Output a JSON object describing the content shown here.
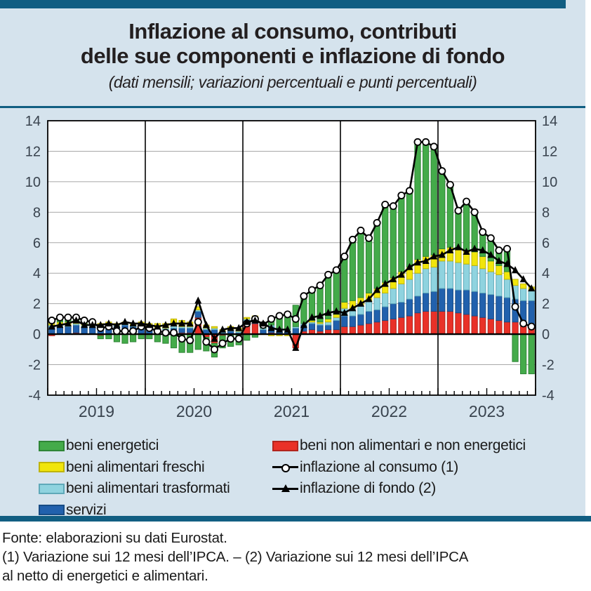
{
  "figure": {
    "title_line1": "Inflazione al consumo, contributi",
    "title_line2": "delle sue componenti e inflazione di fondo",
    "subtitle": "(dati mensili; variazioni percentuali e punti percentuali)"
  },
  "colors": {
    "accent_teal": "#115E82",
    "panel_blue": "#D5E3ED",
    "axis_text": "#39434E",
    "grid_gray": "#A8A8A8",
    "energy_green": "#44AB4A",
    "goods_red": "#E93128",
    "fresh_yellow": "#F1E50C",
    "processed_lightblue": "#8FD3DF",
    "services_blue": "#2161AD"
  },
  "chart_data": {
    "type": "bar",
    "stacked": true,
    "grid": true,
    "legend_position": "bottom",
    "title": "Inflazione al consumo, contributi delle sue componenti e inflazione di fondo",
    "subtitle": "dati mensili; variazioni percentuali e punti percentuali",
    "x_years": [
      "2019",
      "2020",
      "2021",
      "2022",
      "2023"
    ],
    "months_per_year": 12,
    "ylim": [
      -4,
      14
    ],
    "y_ticks": [
      14,
      12,
      10,
      8,
      6,
      4,
      2,
      0,
      -2,
      -4
    ],
    "bar_series": [
      {
        "name": "beni non alimentari e non energetici",
        "color": "#E93128",
        "stroke": "#B2251E",
        "values": [
          -0.1,
          0.0,
          0.0,
          0.1,
          0.0,
          0.0,
          -0.1,
          0.0,
          0.0,
          0.0,
          0.0,
          0.0,
          0.0,
          0.0,
          0.0,
          0.1,
          0.1,
          0.1,
          1.1,
          -0.2,
          -0.6,
          -0.1,
          0.0,
          0.0,
          0.6,
          0.7,
          0.0,
          0.1,
          0.0,
          0.0,
          -0.9,
          0.2,
          0.3,
          0.2,
          0.3,
          0.3,
          0.5,
          0.5,
          0.6,
          0.7,
          0.8,
          0.9,
          1.0,
          1.1,
          1.2,
          1.4,
          1.5,
          1.5,
          1.5,
          1.5,
          1.4,
          1.3,
          1.2,
          1.1,
          1.0,
          0.9,
          0.8,
          0.8,
          0.7,
          0.6
        ]
      },
      {
        "name": "servizi",
        "color": "#2161AD",
        "stroke": "#174C85",
        "values": [
          0.5,
          0.5,
          0.5,
          0.5,
          0.5,
          0.5,
          0.5,
          0.5,
          0.5,
          0.6,
          0.5,
          0.5,
          0.3,
          0.3,
          0.3,
          0.3,
          0.3,
          0.3,
          0.4,
          0.3,
          0.3,
          0.1,
          0.2,
          0.1,
          0.3,
          0.3,
          0.3,
          0.4,
          0.3,
          0.2,
          0.4,
          0.4,
          0.4,
          0.4,
          0.3,
          0.6,
          0.7,
          0.7,
          0.7,
          0.8,
          0.8,
          0.9,
          1.0,
          1.0,
          1.1,
          1.1,
          1.2,
          1.3,
          1.5,
          1.5,
          1.5,
          1.6,
          1.6,
          1.6,
          1.6,
          1.6,
          1.6,
          1.5,
          1.5,
          1.6
        ]
      },
      {
        "name": "beni alimentari trasformati",
        "color": "#8FD3DF",
        "stroke": "#5FA9B9",
        "values": [
          0.1,
          0.1,
          0.1,
          0.1,
          0.1,
          0.1,
          0.1,
          0.1,
          0.1,
          0.1,
          0.1,
          0.1,
          0.1,
          0.1,
          0.1,
          0.2,
          0.1,
          0.1,
          0.1,
          0.1,
          0.1,
          0.1,
          0.1,
          0.1,
          0.1,
          0.1,
          0.1,
          0.1,
          0.1,
          0.1,
          0.1,
          0.1,
          0.1,
          0.1,
          0.2,
          0.2,
          0.5,
          0.5,
          0.6,
          0.7,
          0.8,
          0.9,
          1.0,
          1.2,
          1.3,
          1.5,
          1.6,
          1.6,
          1.8,
          1.8,
          1.8,
          1.7,
          1.7,
          1.6,
          1.5,
          1.4,
          1.2,
          0.9,
          0.8,
          0.7
        ]
      },
      {
        "name": "beni alimentari freschi",
        "color": "#F1E50C",
        "stroke": "#BFB409",
        "values": [
          0.2,
          0.2,
          0.2,
          0.1,
          0.1,
          0.2,
          0.1,
          0.2,
          0.1,
          0.1,
          0.1,
          0.2,
          0.3,
          0.3,
          0.3,
          0.4,
          0.4,
          0.3,
          0.2,
          0.2,
          0.1,
          0.1,
          0.2,
          0.2,
          0.1,
          0.1,
          0.0,
          -0.1,
          -0.1,
          -0.1,
          0.0,
          0.0,
          0.1,
          0.1,
          0.2,
          0.2,
          0.4,
          0.5,
          0.5,
          0.5,
          0.6,
          0.7,
          0.7,
          0.8,
          0.8,
          0.9,
          0.8,
          0.8,
          0.8,
          0.9,
          0.9,
          0.9,
          0.9,
          0.8,
          0.7,
          0.6,
          0.5,
          0.4,
          0.3,
          0.2
        ]
      },
      {
        "name": "beni energetici",
        "color": "#44AB4A",
        "stroke": "#2F8536",
        "values": [
          0.2,
          0.3,
          0.3,
          0.3,
          0.2,
          0.0,
          -0.2,
          -0.3,
          -0.5,
          -0.6,
          -0.5,
          -0.3,
          -0.3,
          -0.5,
          -0.6,
          -0.9,
          -1.2,
          -1.2,
          -1.0,
          -0.9,
          -0.9,
          -0.8,
          -0.8,
          -0.7,
          -0.4,
          -0.2,
          0.2,
          0.5,
          0.9,
          1.1,
          1.4,
          1.8,
          2.0,
          2.4,
          2.9,
          2.9,
          3.0,
          4.0,
          4.4,
          3.6,
          4.3,
          5.1,
          4.7,
          5.0,
          5.0,
          7.7,
          7.5,
          7.1,
          5.1,
          4.1,
          2.5,
          3.2,
          2.6,
          1.6,
          1.5,
          1.0,
          1.5,
          -1.8,
          -2.6,
          -2.6
        ]
      }
    ],
    "line_series": [
      {
        "name": "inflazione al consumo (1)",
        "marker": "circle",
        "color": "#000000",
        "values": [
          0.9,
          1.1,
          1.1,
          1.1,
          0.9,
          0.8,
          0.4,
          0.5,
          0.2,
          0.2,
          0.2,
          0.5,
          0.4,
          0.2,
          0.1,
          0.1,
          -0.3,
          -0.4,
          0.8,
          -0.5,
          -1.0,
          -0.6,
          -0.3,
          -0.3,
          0.7,
          1.0,
          0.6,
          1.0,
          1.2,
          1.3,
          1.0,
          2.5,
          2.9,
          3.2,
          3.9,
          4.2,
          5.1,
          6.2,
          6.8,
          6.3,
          7.3,
          8.5,
          8.4,
          9.1,
          9.4,
          12.6,
          12.6,
          12.3,
          10.7,
          9.8,
          8.1,
          8.7,
          8.0,
          6.7,
          6.3,
          5.5,
          5.6,
          1.8,
          0.7,
          0.5
        ]
      },
      {
        "name": "inflazione di fondo (2)",
        "marker": "triangle",
        "color": "#000000",
        "values": [
          0.5,
          0.6,
          0.7,
          0.9,
          0.6,
          0.6,
          0.6,
          0.7,
          0.6,
          0.8,
          0.7,
          0.7,
          0.6,
          0.5,
          0.6,
          0.7,
          0.7,
          0.7,
          2.2,
          0.6,
          -0.3,
          0.3,
          0.4,
          0.4,
          0.8,
          0.9,
          0.7,
          0.4,
          0.3,
          0.3,
          -0.9,
          0.6,
          1.1,
          1.2,
          1.4,
          1.5,
          1.4,
          1.7,
          2.0,
          2.3,
          2.9,
          3.3,
          3.6,
          3.9,
          4.4,
          4.7,
          4.8,
          5.1,
          5.2,
          5.5,
          5.7,
          5.4,
          5.6,
          5.5,
          5.2,
          4.8,
          4.6,
          4.2,
          3.6,
          3.0
        ]
      }
    ]
  },
  "legend": {
    "left_items": [
      {
        "swatch": "green",
        "label": "beni energetici"
      },
      {
        "swatch": "yellow",
        "label": "beni alimentari freschi"
      },
      {
        "swatch": "lightblue",
        "label": "beni alimentari trasformati"
      },
      {
        "swatch": "blue",
        "label": "servizi"
      }
    ],
    "right_items": [
      {
        "swatch": "red",
        "label": "beni non alimentari e non energetici"
      },
      {
        "swatch": "line-circle",
        "label": "inflazione al consumo (1)"
      },
      {
        "swatch": "line-triangle",
        "label": "inflazione di fondo (2)"
      }
    ]
  },
  "footer": {
    "line1": "Fonte: elaborazioni su dati Eurostat.",
    "line2": "(1) Variazione sui 12 mesi dell’IPCA. – (2) Variazione sui 12 mesi dell’IPCA",
    "line3": "al netto di energetici e alimentari."
  }
}
